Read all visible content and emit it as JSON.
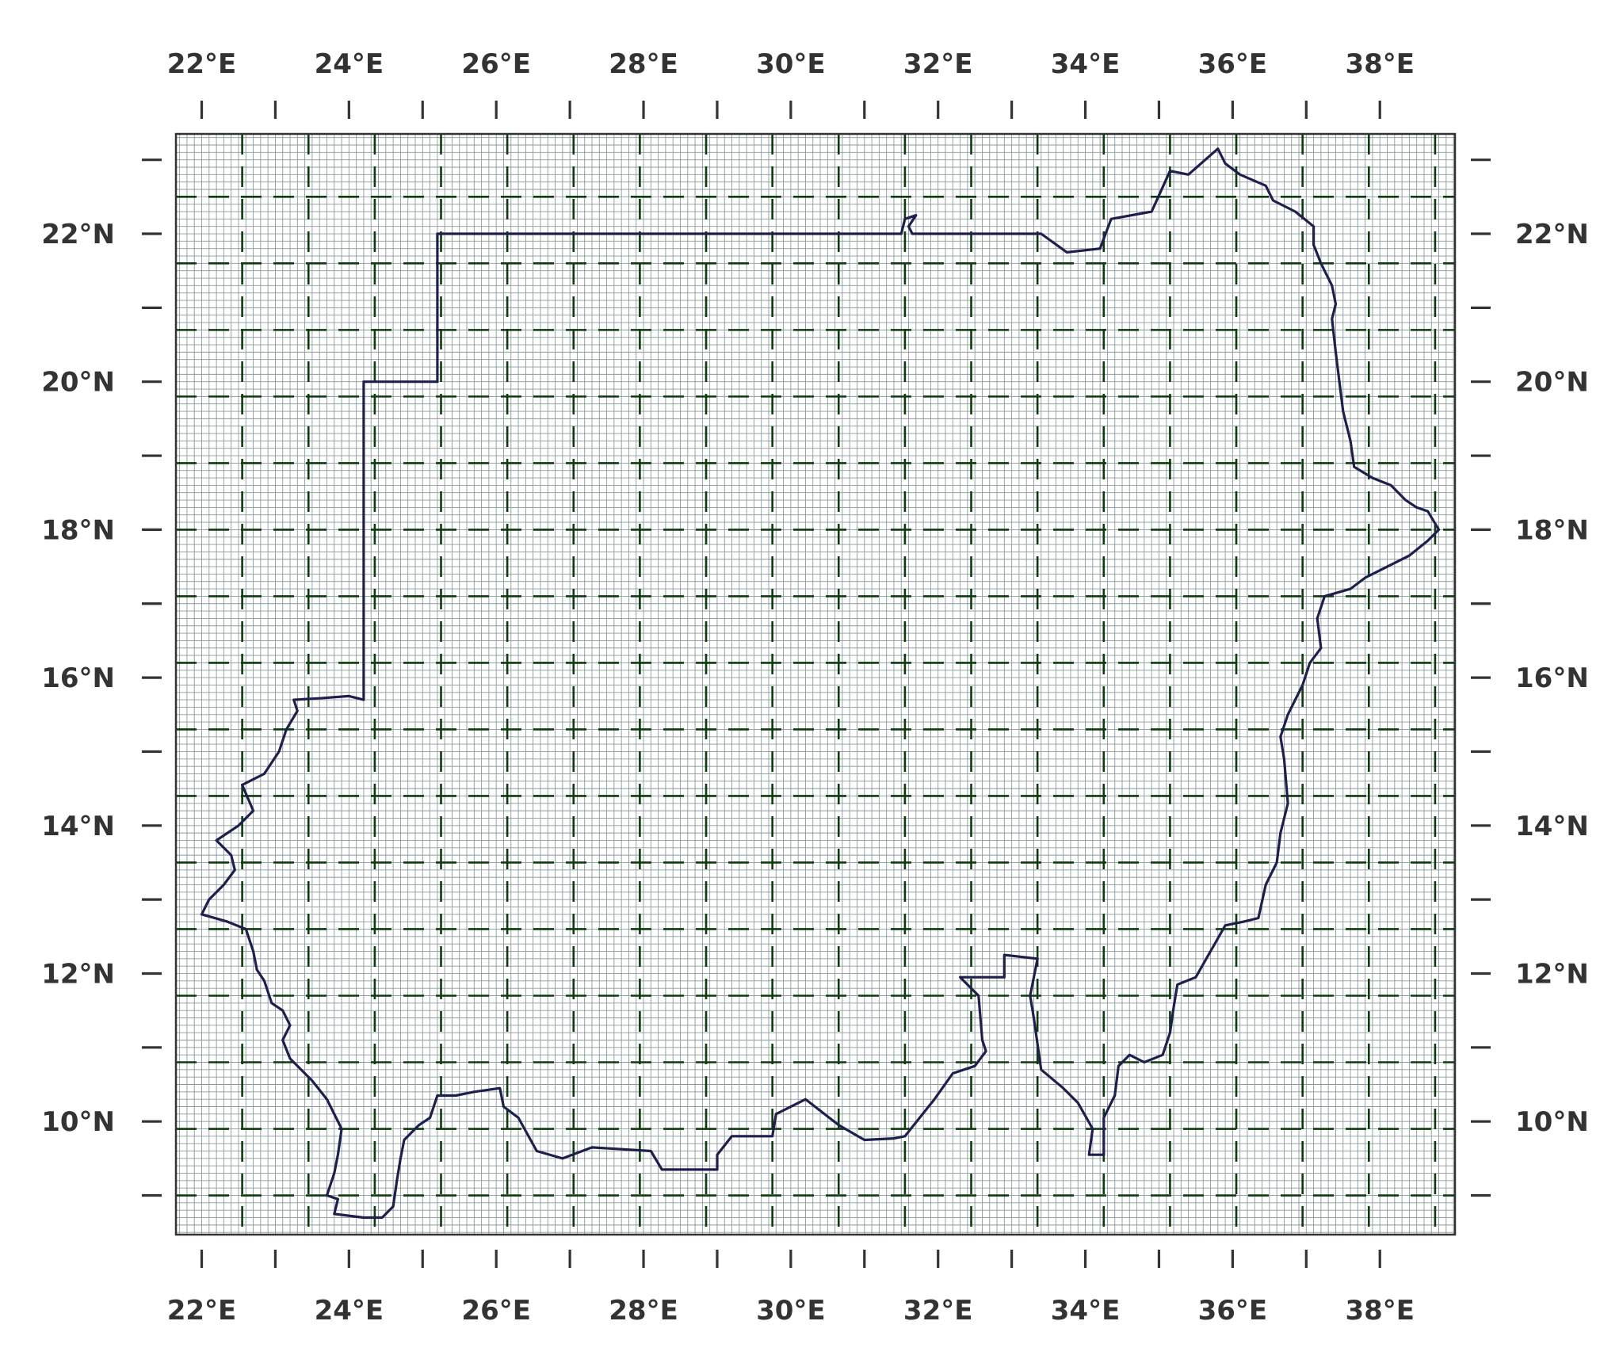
{
  "map": {
    "lon_range": [
      21.45,
      38.82
    ],
    "lat_range": [
      8.47,
      23.35
    ],
    "lon_tick_labels": [
      "22°E",
      "24°E",
      "26°E",
      "28°E",
      "30°E",
      "32°E",
      "34°E",
      "36°E",
      "38°E"
    ],
    "lat_tick_labels": [
      "22°N",
      "20°N",
      "18°N",
      "16°N",
      "14°N",
      "12°N",
      "10°N"
    ],
    "major_ticks_lon": [
      21.8,
      22.8,
      23.8,
      24.8,
      25.8,
      26.8,
      27.8,
      28.8,
      29.8,
      30.8,
      31.8,
      32.8,
      33.8,
      34.8,
      35.8,
      36.8,
      37.8
    ],
    "major_ticks_lat": [
      9.0,
      10.0,
      11.0,
      12.0,
      13.0,
      14.0,
      15.0,
      16.0,
      17.0,
      18.0,
      19.0,
      20.0,
      21.0,
      22.0,
      23.0
    ],
    "dashed_grid_lon": [
      22.35,
      23.25,
      24.15,
      25.05,
      25.95,
      26.85,
      27.75,
      28.65,
      29.55,
      30.45,
      31.35,
      32.25,
      33.15,
      34.05,
      34.95,
      35.85,
      36.75,
      37.65,
      38.55
    ],
    "dashed_grid_lat": [
      9.0,
      9.9,
      10.8,
      11.7,
      12.6,
      13.5,
      14.4,
      15.3,
      16.2,
      17.1,
      18.0,
      18.9,
      19.8,
      20.7,
      21.6,
      22.5
    ],
    "fine_grid_step_deg": 0.1,
    "colors": {
      "border": "#1f1f4d",
      "dashed_grid": "#0d3b0d",
      "fine_grid": "#8a9a9a",
      "frame": "#333333",
      "tick_label": "#333333"
    },
    "boundary": [
      [
        24.0,
        15.7
      ],
      [
        24.0,
        20.0
      ],
      [
        25.0,
        20.0
      ],
      [
        25.0,
        22.0
      ],
      [
        31.3,
        22.0
      ],
      [
        31.35,
        22.2
      ],
      [
        31.5,
        22.25
      ],
      [
        31.4,
        22.1
      ],
      [
        31.45,
        22.0
      ],
      [
        33.2,
        22.0
      ],
      [
        33.55,
        21.75
      ],
      [
        34.0,
        21.8
      ],
      [
        34.15,
        22.2
      ],
      [
        34.7,
        22.3
      ],
      [
        34.95,
        22.85
      ],
      [
        35.2,
        22.8
      ],
      [
        35.6,
        23.15
      ],
      [
        35.7,
        22.95
      ],
      [
        35.9,
        22.8
      ],
      [
        36.25,
        22.65
      ],
      [
        36.35,
        22.45
      ],
      [
        36.65,
        22.3
      ],
      [
        36.9,
        22.1
      ],
      [
        36.9,
        21.85
      ],
      [
        37.0,
        21.6
      ],
      [
        37.15,
        21.3
      ],
      [
        37.2,
        21.05
      ],
      [
        37.15,
        20.85
      ],
      [
        37.2,
        20.4
      ],
      [
        37.25,
        20.0
      ],
      [
        37.3,
        19.6
      ],
      [
        37.4,
        19.2
      ],
      [
        37.45,
        18.85
      ],
      [
        37.7,
        18.7
      ],
      [
        37.95,
        18.6
      ],
      [
        38.15,
        18.4
      ],
      [
        38.3,
        18.3
      ],
      [
        38.45,
        18.25
      ],
      [
        38.6,
        18.0
      ],
      [
        38.45,
        17.85
      ],
      [
        38.2,
        17.65
      ],
      [
        37.9,
        17.5
      ],
      [
        37.6,
        17.35
      ],
      [
        37.4,
        17.2
      ],
      [
        37.05,
        17.1
      ],
      [
        36.95,
        16.8
      ],
      [
        37.0,
        16.4
      ],
      [
        36.85,
        16.2
      ],
      [
        36.75,
        15.9
      ],
      [
        36.55,
        15.5
      ],
      [
        36.45,
        15.2
      ],
      [
        36.5,
        14.9
      ],
      [
        36.55,
        14.3
      ],
      [
        36.45,
        13.9
      ],
      [
        36.4,
        13.5
      ],
      [
        36.25,
        13.2
      ],
      [
        36.15,
        12.75
      ],
      [
        35.95,
        12.7
      ],
      [
        35.7,
        12.65
      ],
      [
        35.5,
        12.3
      ],
      [
        35.3,
        11.95
      ],
      [
        35.05,
        11.85
      ],
      [
        35.0,
        11.55
      ],
      [
        34.95,
        11.2
      ],
      [
        34.85,
        10.9
      ],
      [
        34.6,
        10.8
      ],
      [
        34.4,
        10.9
      ],
      [
        34.25,
        10.75
      ],
      [
        34.2,
        10.35
      ],
      [
        34.05,
        10.05
      ],
      [
        34.05,
        9.55
      ],
      [
        33.85,
        9.55
      ],
      [
        33.9,
        9.9
      ],
      [
        33.7,
        10.25
      ],
      [
        33.5,
        10.45
      ],
      [
        33.2,
        10.7
      ],
      [
        33.1,
        11.4
      ],
      [
        33.05,
        11.7
      ],
      [
        33.15,
        12.2
      ],
      [
        32.7,
        12.25
      ],
      [
        32.7,
        11.95
      ],
      [
        32.1,
        11.95
      ],
      [
        32.35,
        11.7
      ],
      [
        32.4,
        11.1
      ],
      [
        32.45,
        10.95
      ],
      [
        32.3,
        10.75
      ],
      [
        32.0,
        10.65
      ],
      [
        31.75,
        10.3
      ],
      [
        31.55,
        10.05
      ],
      [
        31.35,
        9.8
      ],
      [
        31.2,
        9.77
      ],
      [
        30.8,
        9.75
      ],
      [
        30.45,
        9.95
      ],
      [
        30.0,
        10.3
      ],
      [
        29.6,
        10.1
      ],
      [
        29.55,
        9.8
      ],
      [
        29.0,
        9.8
      ],
      [
        28.8,
        9.55
      ],
      [
        28.8,
        9.35
      ],
      [
        28.05,
        9.35
      ],
      [
        27.9,
        9.6
      ],
      [
        27.1,
        9.65
      ],
      [
        26.7,
        9.5
      ],
      [
        26.35,
        9.6
      ],
      [
        26.1,
        10.05
      ],
      [
        25.9,
        10.2
      ],
      [
        25.85,
        10.45
      ],
      [
        25.5,
        10.4
      ],
      [
        25.25,
        10.35
      ],
      [
        25.0,
        10.35
      ],
      [
        24.9,
        10.05
      ],
      [
        24.75,
        9.95
      ],
      [
        24.55,
        9.75
      ],
      [
        24.5,
        9.5
      ],
      [
        24.45,
        9.2
      ],
      [
        24.4,
        8.85
      ],
      [
        24.25,
        8.7
      ],
      [
        24.0,
        8.7
      ],
      [
        23.6,
        8.75
      ],
      [
        23.65,
        8.95
      ],
      [
        23.5,
        9.0
      ],
      [
        23.6,
        9.3
      ],
      [
        23.65,
        9.55
      ],
      [
        23.7,
        9.9
      ],
      [
        23.5,
        10.3
      ],
      [
        23.3,
        10.55
      ],
      [
        23.0,
        10.85
      ],
      [
        22.9,
        11.1
      ],
      [
        23.0,
        11.3
      ],
      [
        22.9,
        11.5
      ],
      [
        22.75,
        11.6
      ],
      [
        22.65,
        11.9
      ],
      [
        22.55,
        12.05
      ],
      [
        22.5,
        12.3
      ],
      [
        22.4,
        12.6
      ],
      [
        22.15,
        12.7
      ],
      [
        21.8,
        12.8
      ],
      [
        21.9,
        13.0
      ],
      [
        22.1,
        13.2
      ],
      [
        22.25,
        13.4
      ],
      [
        22.2,
        13.6
      ],
      [
        22.0,
        13.8
      ],
      [
        22.3,
        14.0
      ],
      [
        22.5,
        14.2
      ],
      [
        22.35,
        14.55
      ],
      [
        22.65,
        14.7
      ],
      [
        22.85,
        15.0
      ],
      [
        22.95,
        15.3
      ],
      [
        23.1,
        15.55
      ],
      [
        23.05,
        15.7
      ],
      [
        23.4,
        15.72
      ],
      [
        23.8,
        15.75
      ],
      [
        24.0,
        15.7
      ]
    ]
  }
}
